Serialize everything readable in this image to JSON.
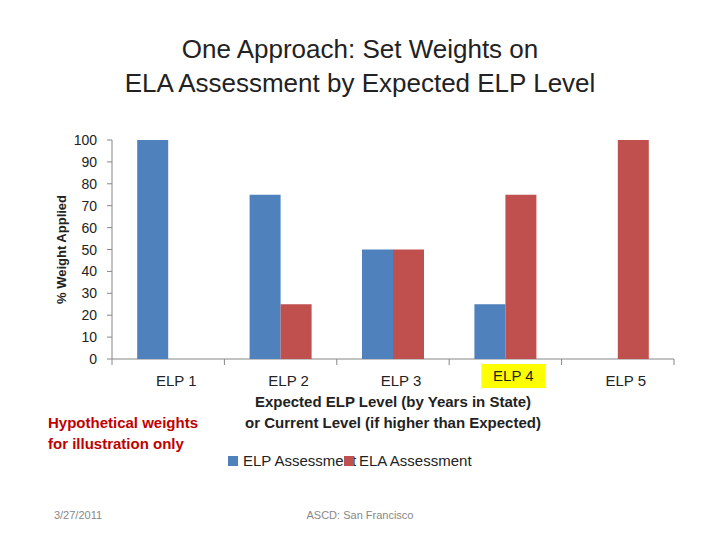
{
  "chart_data": {
    "type": "bar",
    "title": "One Approach: Set Weights on\nELA Assessment by Expected ELP Level",
    "x_label": "Expected ELP Level (by Years in State)\nor Current Level (if higher than Expected)",
    "y_label": "% Weight Applied",
    "categories": [
      "ELP 1",
      "ELP 2",
      "ELP 3",
      "ELP 4",
      "ELP 5"
    ],
    "series": [
      {
        "name": "ELP Assessment",
        "color": "#4f81bd",
        "values": [
          100,
          75,
          50,
          25,
          0
        ]
      },
      {
        "name": "ELA Assessment",
        "color": "#c0504d",
        "values": [
          0,
          25,
          50,
          75,
          100
        ]
      }
    ],
    "ylim": [
      0,
      100
    ],
    "yticks": [
      0,
      10,
      20,
      30,
      40,
      50,
      60,
      70,
      80,
      90,
      100
    ],
    "grid": false,
    "legend": "bottom",
    "annotations": [
      "Hypothetical weights\nfor illustration only",
      "3/27/2011",
      "ASCD: San Francisco"
    ]
  }
}
